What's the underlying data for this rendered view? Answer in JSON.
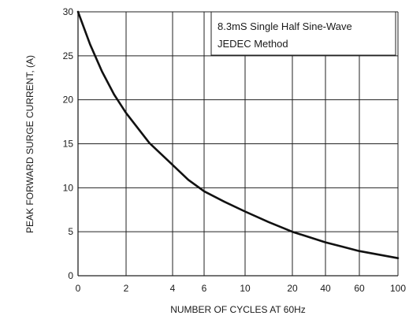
{
  "chart_data": {
    "type": "line",
    "title": "",
    "xlabel": "NUMBER OF CYCLES AT 60Hz",
    "ylabel": "PEAK  FORWARD SURGE CURRENT, (A)",
    "x_ticks": [
      "0",
      "2",
      "4",
      "6",
      "10",
      "20",
      "40",
      "60",
      "100"
    ],
    "y_ticks": [
      "0",
      "5",
      "10",
      "15",
      "20",
      "25",
      "30"
    ],
    "ylim": [
      0,
      30
    ],
    "grid": true,
    "annotation": [
      "8.3mS Single Half Sine-Wave",
      "JEDEC Method"
    ],
    "series": [
      {
        "x": [
          0,
          0.5,
          1,
          1.5,
          2,
          3,
          4,
          5,
          6,
          8,
          10,
          15,
          20,
          30,
          40,
          50,
          60,
          80,
          100
        ],
        "values": [
          30,
          26.3,
          23.2,
          20.6,
          18.5,
          15.1,
          12.6,
          10.9,
          9.6,
          8.4,
          7.3,
          6.1,
          5.0,
          4.4,
          3.8,
          3.3,
          2.8,
          2.4,
          2.0
        ]
      }
    ],
    "style": {
      "line_color": "#111111",
      "grid_color": "#222222"
    }
  }
}
